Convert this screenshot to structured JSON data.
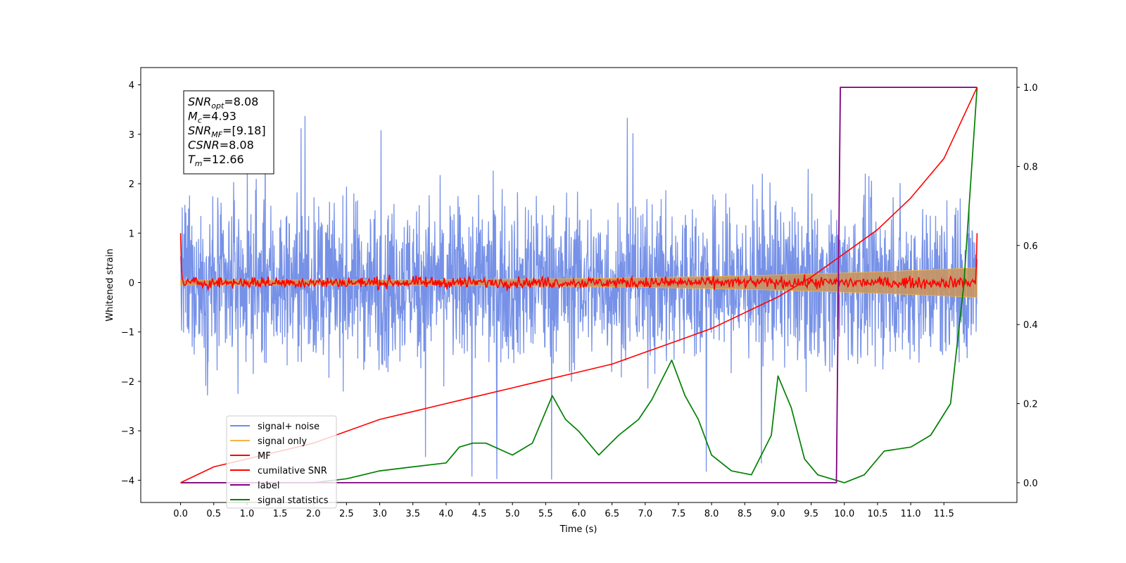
{
  "chart_data": {
    "type": "line",
    "title": "",
    "xlabel": "Time (s)",
    "ylabel": "Whitened strain",
    "y2label": "",
    "xlim": [
      -0.6,
      12.6
    ],
    "ylim": [
      -4.45,
      4.35
    ],
    "y2lim": [
      -0.05,
      1.05
    ],
    "x_ticks": [
      "0.0",
      "0.5",
      "1.0",
      "1.5",
      "2.0",
      "2.5",
      "3.0",
      "3.5",
      "4.0",
      "4.5",
      "5.0",
      "5.5",
      "6.0",
      "6.5",
      "7.0",
      "7.5",
      "8.0",
      "8.5",
      "9.0",
      "9.5",
      "10.0",
      "10.5",
      "11.0",
      "11.5"
    ],
    "y_ticks": [
      "4",
      "3",
      "2",
      "1",
      "0",
      "−1",
      "−2",
      "−3",
      "−4"
    ],
    "y2_ticks": [
      "1.0",
      "0.8",
      "0.6",
      "0.4",
      "0.2",
      "0.0"
    ],
    "grid": false,
    "legend_position": "lower-left",
    "annotation": {
      "lines": [
        {
          "sym": "SNR",
          "sub": "opt",
          "val": "=8.08"
        },
        {
          "sym": "M",
          "sub": "c",
          "val": "=4.93"
        },
        {
          "sym": "SNR",
          "sub": "MF",
          "val": "=[9.18]"
        },
        {
          "sym": "CSNR",
          "sub": "",
          "val": "=8.08"
        },
        {
          "sym": "T",
          "sub": "m",
          "val": "=12.66"
        }
      ]
    },
    "series": [
      {
        "name": "signal+ noise",
        "color": "#6f8be6",
        "axis": "left",
        "style": "noise band",
        "x_range": [
          0.0,
          12.0
        ],
        "spread": 1.15,
        "spike_range": [
          -4.15,
          3.55
        ]
      },
      {
        "name": "signal only",
        "color": "#f4b544",
        "axis": "left",
        "style": "chirp envelope",
        "x_range": [
          0.0,
          12.0
        ],
        "amplitude_start": 0.05,
        "amplitude_end": 0.3
      },
      {
        "name": "MF",
        "color": "#ff0000",
        "axis": "left",
        "style": "matched filter",
        "x_range": [
          0.0,
          12.0
        ],
        "endpoint_value": 1.0,
        "spread": 0.08
      },
      {
        "name": "cumilative SNR",
        "color": "#ff0000",
        "axis": "right",
        "x": [
          0.0,
          0.5,
          1.0,
          1.5,
          2.0,
          2.5,
          3.0,
          3.5,
          4.0,
          4.5,
          5.0,
          5.5,
          6.0,
          6.5,
          7.0,
          7.5,
          8.0,
          8.5,
          9.0,
          9.5,
          10.0,
          10.5,
          11.0,
          11.5,
          12.0
        ],
        "values": [
          0.0,
          0.04,
          0.06,
          0.08,
          0.1,
          0.13,
          0.16,
          0.18,
          0.2,
          0.22,
          0.24,
          0.26,
          0.28,
          0.3,
          0.33,
          0.36,
          0.39,
          0.43,
          0.47,
          0.52,
          0.58,
          0.64,
          0.72,
          0.82,
          1.0
        ]
      },
      {
        "name": "label",
        "color": "#800080",
        "axis": "right",
        "x": [
          0.0,
          9.88,
          9.94,
          12.0
        ],
        "values": [
          0.0,
          0.0,
          1.0,
          1.0
        ]
      },
      {
        "name": "signal statistics",
        "color": "#008000",
        "axis": "right",
        "x": [
          0.0,
          1.0,
          2.0,
          2.5,
          3.0,
          3.5,
          4.0,
          4.2,
          4.4,
          4.6,
          5.0,
          5.3,
          5.6,
          5.8,
          6.0,
          6.3,
          6.6,
          6.9,
          7.1,
          7.4,
          7.6,
          7.8,
          8.0,
          8.3,
          8.6,
          8.9,
          9.0,
          9.2,
          9.4,
          9.6,
          9.8,
          10.0,
          10.3,
          10.6,
          11.0,
          11.3,
          11.6,
          11.8,
          12.0
        ],
        "values": [
          0.0,
          0.0,
          0.0,
          0.01,
          0.03,
          0.04,
          0.05,
          0.09,
          0.1,
          0.1,
          0.07,
          0.1,
          0.22,
          0.16,
          0.13,
          0.07,
          0.12,
          0.16,
          0.21,
          0.31,
          0.22,
          0.16,
          0.07,
          0.03,
          0.02,
          0.12,
          0.27,
          0.19,
          0.06,
          0.02,
          0.01,
          0.0,
          0.02,
          0.08,
          0.09,
          0.12,
          0.2,
          0.5,
          1.0
        ]
      }
    ]
  }
}
